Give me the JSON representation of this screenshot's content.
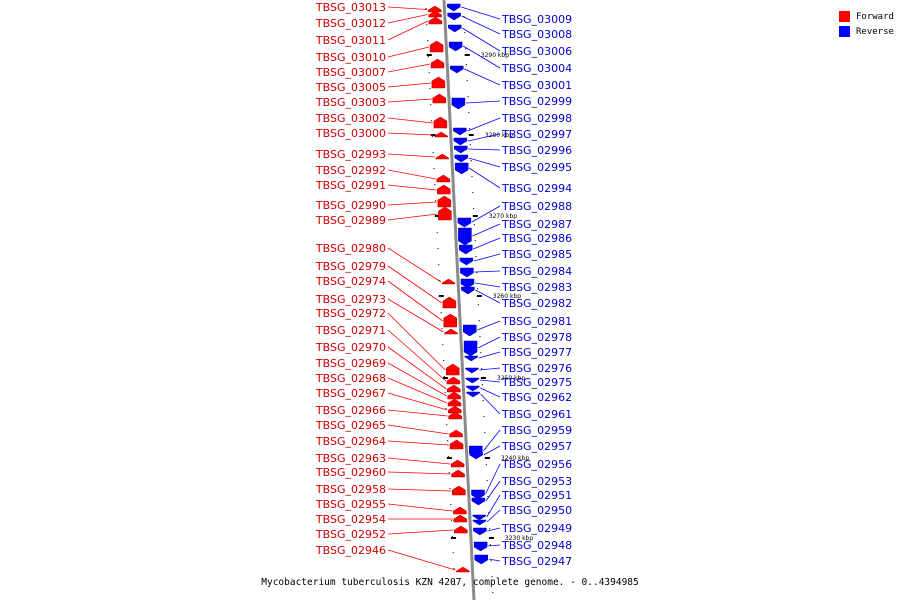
{
  "legend": {
    "items": [
      {
        "label": "Forward",
        "color": "#ff0000"
      },
      {
        "label": "Reverse",
        "color": "#0000ff"
      }
    ]
  },
  "caption": "Mycobacterium tuberculosis KZN 4207, complete genome. - 0..4394985",
  "colors": {
    "forward": "#ff0000",
    "reverse": "#0000ff",
    "backbone": "#8a8a8a"
  },
  "axis_ticks": [
    "3290 kbp",
    "3280 kbp",
    "3270 kbp",
    "3260 kbp",
    "3250 kbp",
    "3240 kbp",
    "3230 kbp"
  ],
  "forward_genes": [
    "TBSG_03013",
    "TBSG_03012",
    "TBSG_03011",
    "TBSG_03010",
    "TBSG_03007",
    "TBSG_03005",
    "TBSG_03003",
    "TBSG_03002",
    "TBSG_03000",
    "TBSG_02993",
    "TBSG_02992",
    "TBSG_02991",
    "TBSG_02990",
    "TBSG_02989",
    "TBSG_02980",
    "TBSG_02979",
    "TBSG_02974",
    "TBSG_02973",
    "TBSG_02972",
    "TBSG_02971",
    "TBSG_02970",
    "TBSG_02969",
    "TBSG_02968",
    "TBSG_02967",
    "TBSG_02966",
    "TBSG_02965",
    "TBSG_02964",
    "TBSG_02963",
    "TBSG_02960",
    "TBSG_02958",
    "TBSG_02955",
    "TBSG_02954",
    "TBSG_02952",
    "TBSG_02946"
  ],
  "reverse_genes": [
    "TBSG_03009",
    "TBSG_03008",
    "TBSG_03006",
    "TBSG_03004",
    "TBSG_03001",
    "TBSG_02999",
    "TBSG_02998",
    "TBSG_02997",
    "TBSG_02996",
    "TBSG_02995",
    "TBSG_02994",
    "TBSG_02988",
    "TBSG_02987",
    "TBSG_02986",
    "TBSG_02985",
    "TBSG_02984",
    "TBSG_02983",
    "TBSG_02982",
    "TBSG_02981",
    "TBSG_02978",
    "TBSG_02977",
    "TBSG_02976",
    "TBSG_02975",
    "TBSG_02962",
    "TBSG_02961",
    "TBSG_02959",
    "TBSG_02957",
    "TBSG_02956",
    "TBSG_02953",
    "TBSG_02951",
    "TBSG_02950",
    "TBSG_02949",
    "TBSG_02948",
    "TBSG_02947"
  ]
}
